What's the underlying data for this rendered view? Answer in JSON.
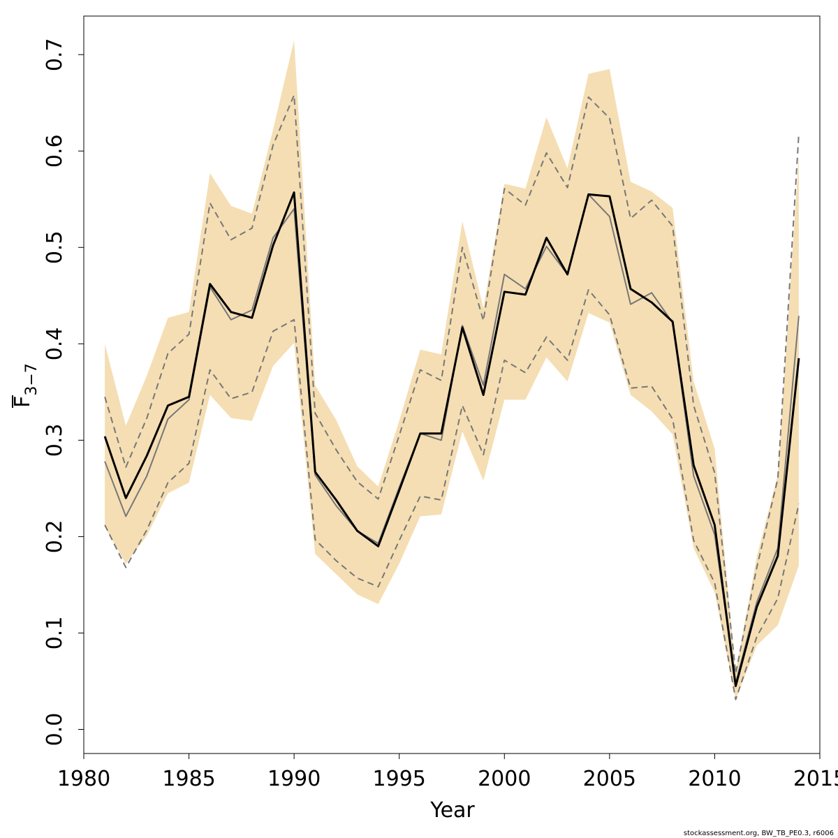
{
  "chart_data": {
    "type": "line",
    "xlabel": "Year",
    "ylabel": {
      "base": "F",
      "subscript": "3−7"
    },
    "xlim": [
      1980,
      2015
    ],
    "ylim": [
      -0.025,
      0.74
    ],
    "x_ticks": [
      1980,
      1985,
      1990,
      1995,
      2000,
      2005,
      2010,
      2015
    ],
    "x_tick_labels": [
      "1980",
      "1985",
      "1990",
      "1995",
      "2000",
      "2005",
      "2010",
      "2015"
    ],
    "y_ticks": [
      0.0,
      0.1,
      0.2,
      0.3,
      0.4,
      0.5,
      0.6,
      0.7
    ],
    "y_tick_labels": [
      "0.0",
      "0.1",
      "0.2",
      "0.3",
      "0.4",
      "0.5",
      "0.6",
      "0.7"
    ],
    "x": [
      1981,
      1982,
      1983,
      1984,
      1985,
      1986,
      1987,
      1988,
      1989,
      1990,
      1991,
      1992,
      1993,
      1994,
      1995,
      1996,
      1997,
      1998,
      1999,
      2000,
      2001,
      2002,
      2003,
      2004,
      2005,
      2006,
      2007,
      2008,
      2009,
      2010,
      2011,
      2012,
      2013,
      2014
    ],
    "series": [
      {
        "name": "estimate",
        "role": "main",
        "color": "#000000",
        "values": [
          0.304,
          0.24,
          0.284,
          0.336,
          0.345,
          0.462,
          0.433,
          0.427,
          0.502,
          0.557,
          0.267,
          0.238,
          0.206,
          0.19,
          0.248,
          0.307,
          0.307,
          0.417,
          0.347,
          0.454,
          0.451,
          0.51,
          0.472,
          0.555,
          0.553,
          0.457,
          0.443,
          0.423,
          0.274,
          0.212,
          0.045,
          0.127,
          0.18,
          0.385
        ]
      },
      {
        "name": "median",
        "role": "median",
        "color": "#777777",
        "values": [
          0.278,
          0.221,
          0.263,
          0.322,
          0.342,
          0.459,
          0.425,
          0.435,
          0.51,
          0.54,
          0.264,
          0.232,
          0.206,
          0.193,
          0.251,
          0.307,
          0.3,
          0.419,
          0.357,
          0.472,
          0.457,
          0.501,
          0.472,
          0.555,
          0.532,
          0.441,
          0.453,
          0.422,
          0.263,
          0.202,
          0.048,
          0.132,
          0.188,
          0.429
        ]
      },
      {
        "name": "upper-dashed",
        "role": "dashed",
        "color": "#777777",
        "values": [
          0.345,
          0.272,
          0.323,
          0.39,
          0.41,
          0.546,
          0.508,
          0.52,
          0.606,
          0.658,
          0.328,
          0.29,
          0.257,
          0.239,
          0.305,
          0.373,
          0.362,
          0.5,
          0.424,
          0.561,
          0.544,
          0.598,
          0.562,
          0.656,
          0.634,
          0.53,
          0.549,
          0.522,
          0.336,
          0.266,
          0.058,
          0.168,
          0.26,
          0.618
        ]
      },
      {
        "name": "lower-dashed",
        "role": "dashed",
        "color": "#777777",
        "values": [
          0.212,
          0.168,
          0.207,
          0.256,
          0.276,
          0.373,
          0.343,
          0.35,
          0.413,
          0.425,
          0.197,
          0.175,
          0.157,
          0.148,
          0.196,
          0.242,
          0.238,
          0.336,
          0.285,
          0.383,
          0.37,
          0.407,
          0.383,
          0.456,
          0.43,
          0.354,
          0.356,
          0.322,
          0.196,
          0.152,
          0.031,
          0.096,
          0.136,
          0.234
        ]
      }
    ],
    "band": {
      "name": "confidence-band",
      "color": "#f5deb3",
      "upper": [
        0.4,
        0.315,
        0.367,
        0.427,
        0.433,
        0.577,
        0.543,
        0.535,
        0.622,
        0.715,
        0.357,
        0.321,
        0.273,
        0.252,
        0.32,
        0.394,
        0.389,
        0.527,
        0.437,
        0.566,
        0.561,
        0.635,
        0.582,
        0.68,
        0.685,
        0.568,
        0.558,
        0.541,
        0.361,
        0.291,
        0.059,
        0.179,
        0.264,
        0.595
      ],
      "lower": [
        0.21,
        0.172,
        0.201,
        0.245,
        0.256,
        0.347,
        0.323,
        0.32,
        0.377,
        0.401,
        0.182,
        0.161,
        0.14,
        0.13,
        0.172,
        0.221,
        0.223,
        0.309,
        0.258,
        0.342,
        0.342,
        0.386,
        0.361,
        0.432,
        0.422,
        0.347,
        0.33,
        0.306,
        0.188,
        0.142,
        0.031,
        0.087,
        0.108,
        0.17
      ]
    },
    "footnote": "stockassessment.org, BW_TB_PE0.3, r6006"
  }
}
